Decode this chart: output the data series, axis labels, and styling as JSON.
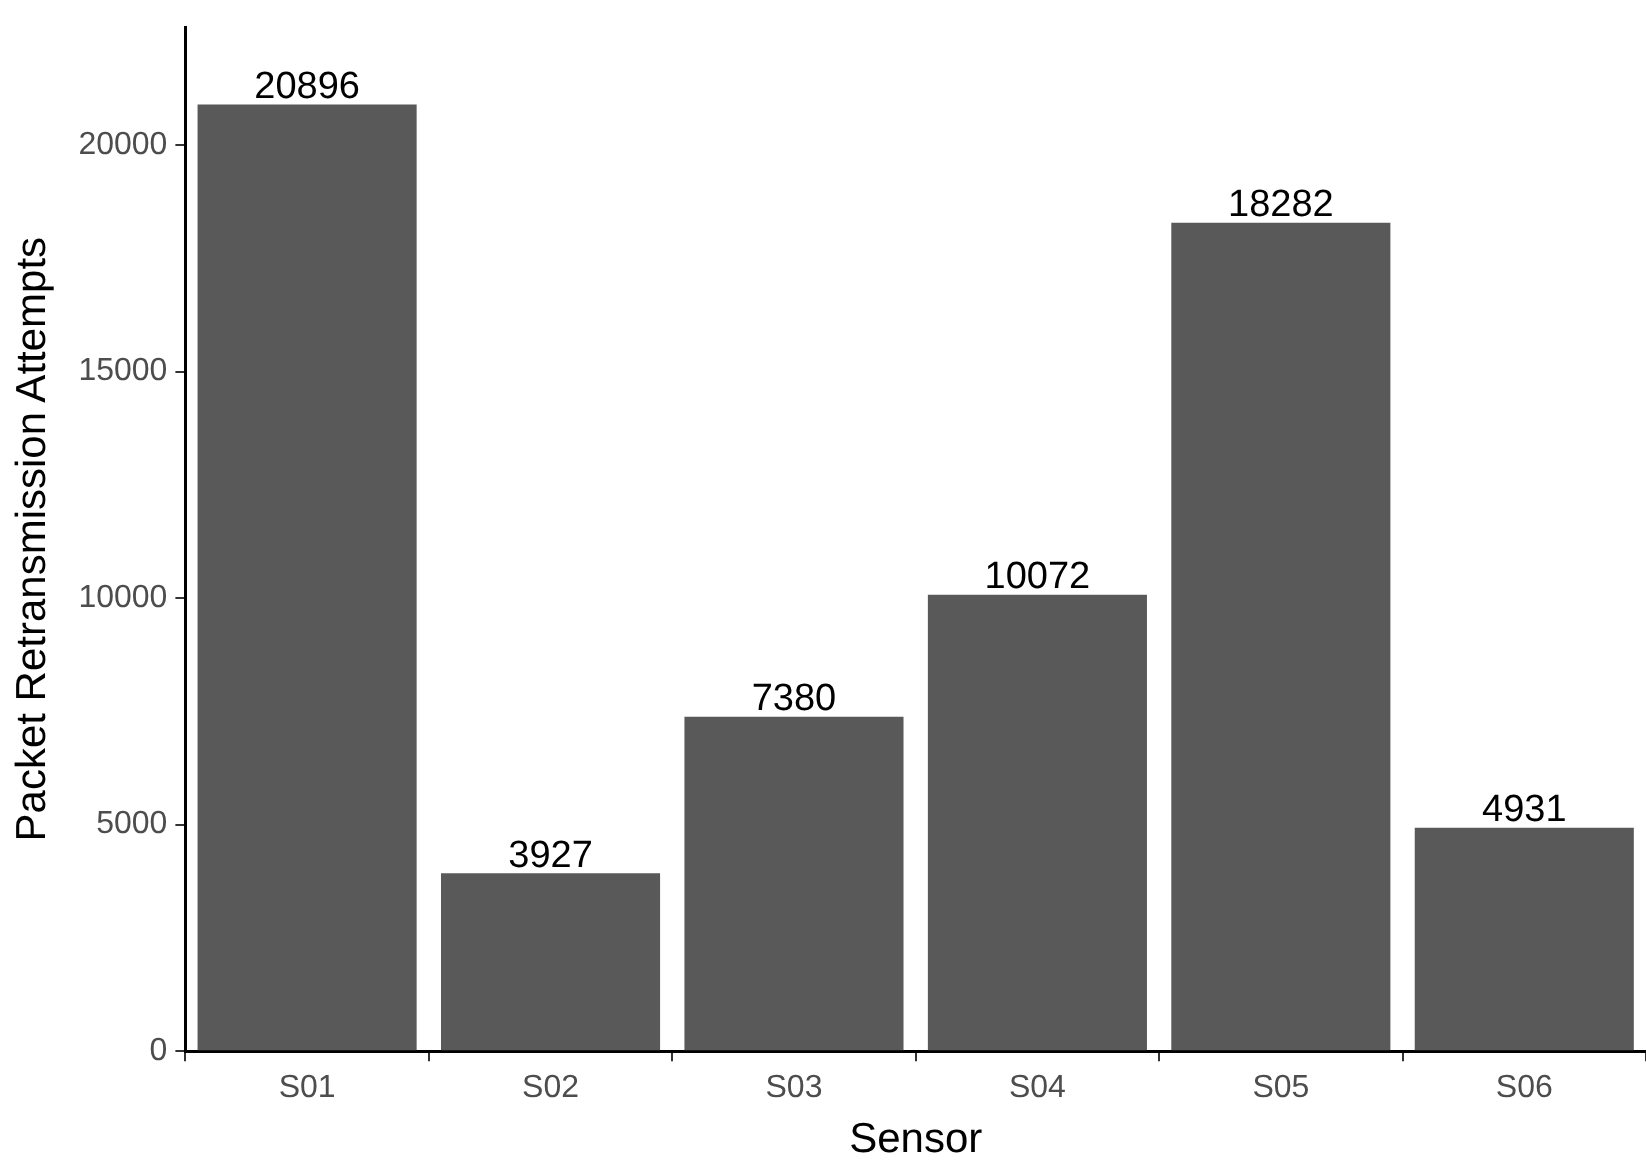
{
  "chart_data": {
    "type": "bar",
    "xlabel": "Sensor",
    "ylabel": "Packet Retransmission Attempts",
    "categories": [
      "S01",
      "S02",
      "S03",
      "S04",
      "S05",
      "S06"
    ],
    "values": [
      20896,
      3927,
      7380,
      10072,
      18282,
      4931
    ],
    "color": "#595959",
    "ylim": [
      0,
      22600
    ],
    "yticks": [
      0,
      5000,
      10000,
      15000,
      20000
    ],
    "data_labels": true
  }
}
